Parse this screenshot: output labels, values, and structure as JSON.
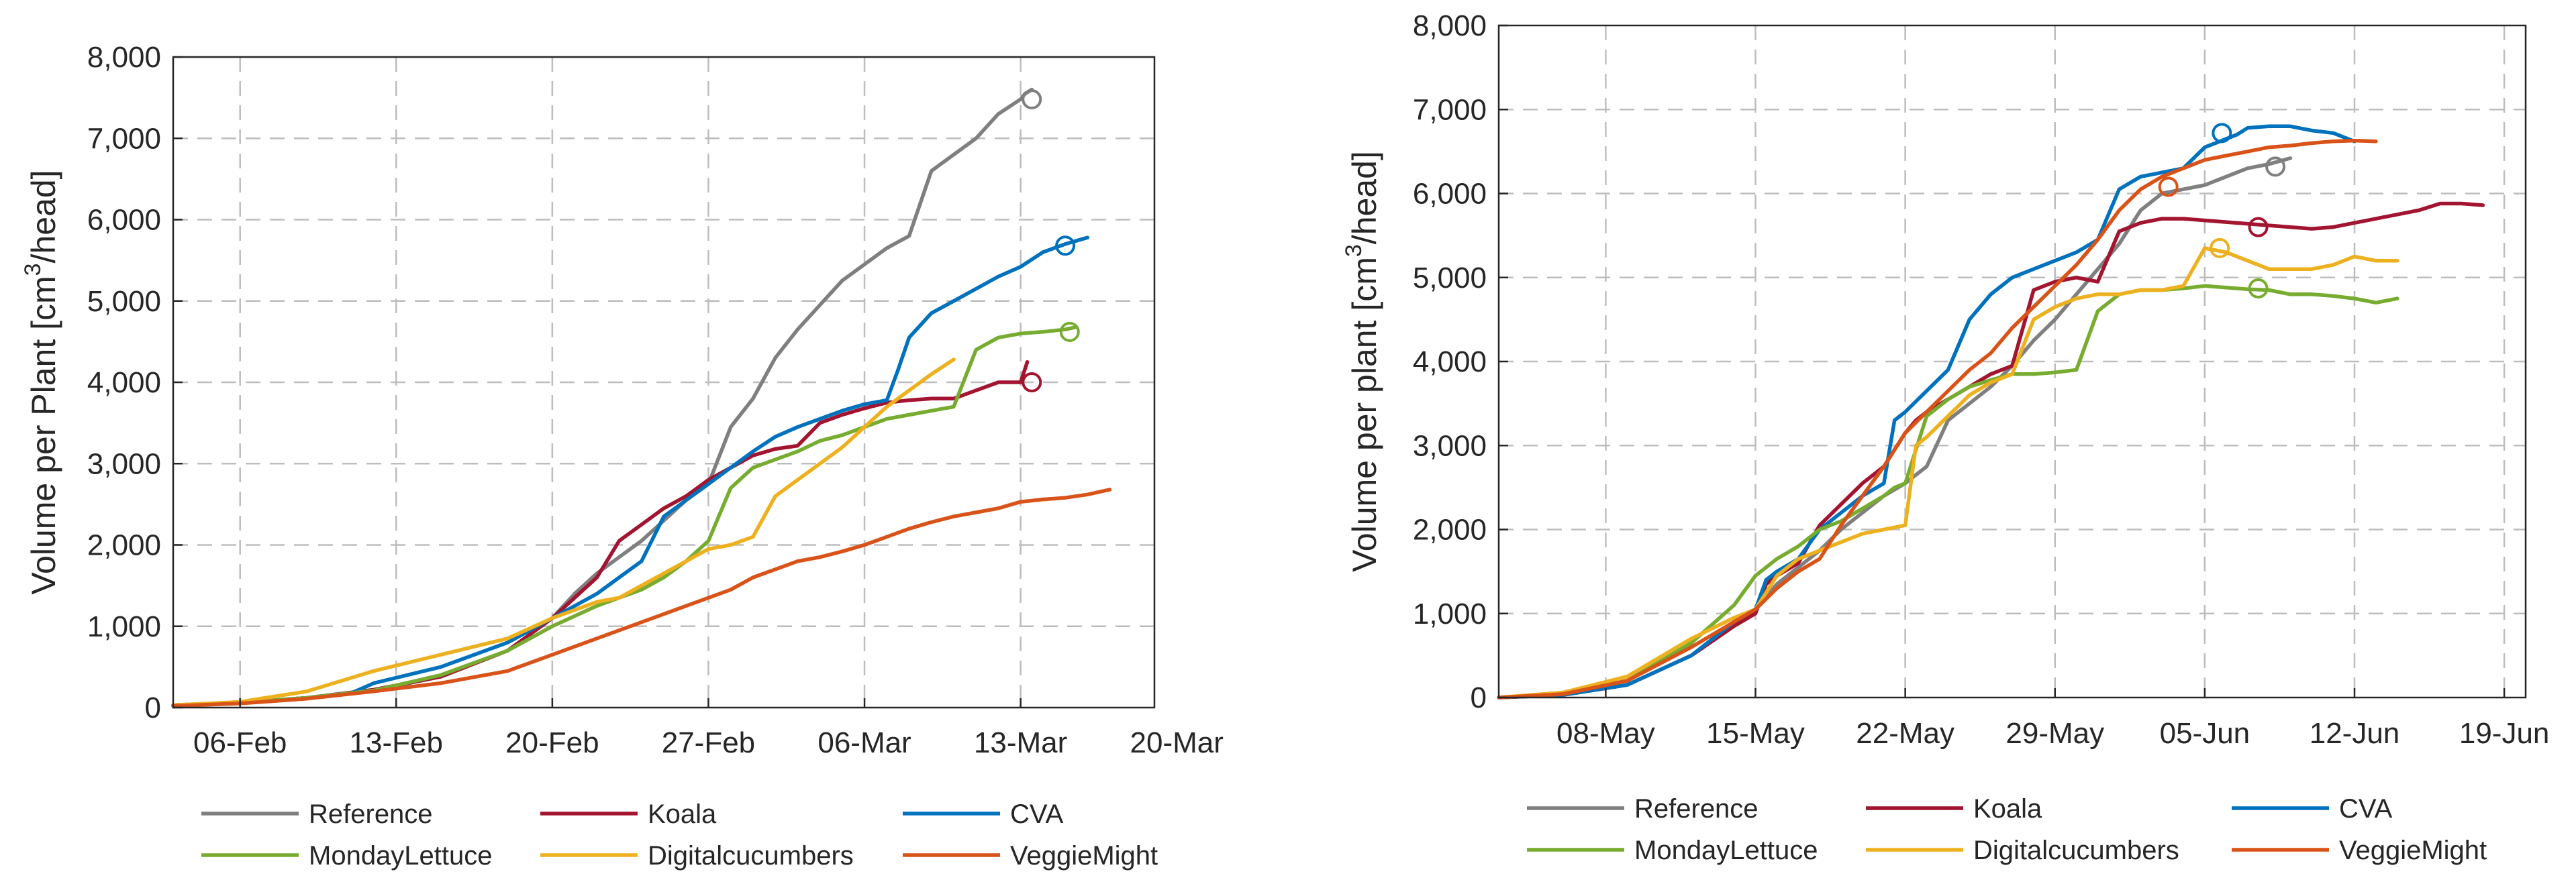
{
  "series_colors": {
    "Reference": "#7f7f7f",
    "Koala": "#a2142f",
    "CVA": "#0072bd",
    "MondayLettuce": "#77ac30",
    "Digitalcucumbers": "#edb120",
    "VeggieMight": "#d95319"
  },
  "chart_data": [
    {
      "type": "line",
      "ylabel": "Volume per Plant [cm",
      "ylabel_sup": "3",
      "ylabel_end": "/head]",
      "xlim": [
        0,
        44
      ],
      "ylim": [
        0,
        8000
      ],
      "xticks": [
        {
          "x": 3,
          "label": "06-Feb"
        },
        {
          "x": 10,
          "label": "13-Feb"
        },
        {
          "x": 17,
          "label": "20-Feb"
        },
        {
          "x": 24,
          "label": "27-Feb"
        },
        {
          "x": 31,
          "label": "06-Mar"
        },
        {
          "x": 38,
          "label": "13-Mar"
        },
        {
          "x": 45,
          "label": "20-Mar"
        }
      ],
      "yticks": [
        {
          "y": 0,
          "label": "0"
        },
        {
          "y": 1000,
          "label": "1,000"
        },
        {
          "y": 2000,
          "label": "2,000"
        },
        {
          "y": 3000,
          "label": "3,000"
        },
        {
          "y": 4000,
          "label": "4,000"
        },
        {
          "y": 5000,
          "label": "5,000"
        },
        {
          "y": 6000,
          "label": "6,000"
        },
        {
          "y": 7000,
          "label": "7,000"
        },
        {
          "y": 8000,
          "label": "8,000"
        }
      ],
      "grid": true,
      "legend_position": "bottom",
      "series": [
        {
          "name": "Reference",
          "x": [
            0,
            3,
            6,
            9,
            12,
            15,
            17,
            18,
            19,
            20,
            21,
            22,
            23,
            24,
            25,
            26,
            27,
            28,
            29,
            30,
            31,
            32,
            33,
            34,
            35,
            36,
            37,
            38,
            38.2,
            38.5
          ],
          "y": [
            30,
            60,
            120,
            210,
            380,
            700,
            1100,
            1400,
            1650,
            1850,
            2050,
            2300,
            2550,
            2750,
            3450,
            3800,
            4300,
            4650,
            4950,
            5250,
            5450,
            5650,
            5800,
            6600,
            6800,
            7000,
            7300,
            7480,
            7550,
            7600
          ],
          "marker": {
            "x": 38.5,
            "y": 7480
          }
        },
        {
          "name": "Koala",
          "x": [
            0,
            3,
            6,
            9,
            12,
            15,
            16,
            17,
            18,
            19,
            20,
            21,
            22,
            23,
            24,
            25,
            26,
            27,
            28,
            29,
            30,
            31,
            32,
            33,
            34,
            35,
            36,
            37,
            38,
            38.3
          ],
          "y": [
            30,
            60,
            120,
            220,
            380,
            700,
            900,
            1100,
            1350,
            1600,
            2050,
            2250,
            2450,
            2600,
            2800,
            2950,
            3100,
            3180,
            3220,
            3500,
            3600,
            3680,
            3750,
            3780,
            3800,
            3800,
            3900,
            4000,
            4000,
            4250
          ],
          "marker": {
            "x": 38.5,
            "y": 4000
          }
        },
        {
          "name": "CVA",
          "x": [
            0,
            3,
            6,
            8,
            9,
            12,
            15,
            17,
            19,
            20,
            21,
            22,
            23,
            24,
            25,
            26,
            27,
            28,
            29,
            30,
            31,
            32,
            32.5,
            33,
            34,
            35,
            36,
            37,
            38,
            39,
            40,
            41
          ],
          "y": [
            30,
            60,
            120,
            180,
            300,
            500,
            800,
            1100,
            1400,
            1600,
            1800,
            2350,
            2550,
            2750,
            2950,
            3150,
            3330,
            3450,
            3550,
            3650,
            3730,
            3780,
            4150,
            4550,
            4850,
            5000,
            5150,
            5300,
            5420,
            5600,
            5700,
            5780
          ],
          "marker": {
            "x": 40,
            "y": 5680
          }
        },
        {
          "name": "MondayLettuce",
          "x": [
            0,
            3,
            6,
            9,
            12,
            15,
            17,
            19,
            20,
            21,
            22,
            23,
            24,
            25,
            26,
            27,
            28,
            29,
            30,
            31,
            32,
            33,
            34,
            35,
            36,
            37,
            38,
            39,
            40,
            40.5
          ],
          "y": [
            30,
            60,
            120,
            210,
            400,
            700,
            1000,
            1250,
            1350,
            1450,
            1600,
            1800,
            2050,
            2700,
            2950,
            3050,
            3150,
            3280,
            3350,
            3450,
            3550,
            3600,
            3650,
            3700,
            4400,
            4550,
            4600,
            4620,
            4650,
            4680
          ],
          "marker": {
            "x": 40.2,
            "y": 4620
          }
        },
        {
          "name": "Digitalcucumbers",
          "x": [
            0,
            3,
            6,
            9,
            12,
            15,
            17,
            19,
            20,
            21,
            22,
            23,
            24,
            25,
            26,
            27,
            28,
            29,
            30,
            31,
            32,
            33,
            34,
            35
          ],
          "y": [
            30,
            70,
            200,
            450,
            650,
            850,
            1100,
            1300,
            1350,
            1500,
            1650,
            1800,
            1950,
            2000,
            2100,
            2600,
            2800,
            3000,
            3200,
            3450,
            3700,
            3900,
            4100,
            4280
          ]
        },
        {
          "name": "VeggieMight",
          "x": [
            0,
            3,
            6,
            9,
            12,
            15,
            16,
            17,
            18,
            19,
            20,
            21,
            22,
            23,
            24,
            25,
            26,
            27,
            28,
            29,
            30,
            31,
            32,
            33,
            34,
            35,
            36,
            37,
            38,
            39,
            40,
            41,
            42
          ],
          "y": [
            20,
            50,
            110,
            200,
            300,
            450,
            550,
            650,
            750,
            850,
            950,
            1050,
            1150,
            1250,
            1350,
            1450,
            1600,
            1700,
            1800,
            1850,
            1920,
            2000,
            2100,
            2200,
            2280,
            2350,
            2400,
            2450,
            2530,
            2560,
            2580,
            2620,
            2680
          ]
        }
      ]
    },
    {
      "type": "line",
      "ylabel": "Volume per plant [cm",
      "ylabel_sup": "3",
      "ylabel_end": "/head]",
      "xlim": [
        0,
        48
      ],
      "ylim": [
        0,
        8000
      ],
      "xticks": [
        {
          "x": 5,
          "label": "08-May"
        },
        {
          "x": 12,
          "label": "15-May"
        },
        {
          "x": 19,
          "label": "22-May"
        },
        {
          "x": 26,
          "label": "29-May"
        },
        {
          "x": 33,
          "label": "05-Jun"
        },
        {
          "x": 40,
          "label": "12-Jun"
        },
        {
          "x": 47,
          "label": "19-Jun"
        }
      ],
      "yticks": [
        {
          "y": 0,
          "label": "0"
        },
        {
          "y": 1000,
          "label": "1,000"
        },
        {
          "y": 2000,
          "label": "2,000"
        },
        {
          "y": 3000,
          "label": "3,000"
        },
        {
          "y": 4000,
          "label": "4,000"
        },
        {
          "y": 5000,
          "label": "5,000"
        },
        {
          "y": 6000,
          "label": "6,000"
        },
        {
          "y": 7000,
          "label": "7,000"
        },
        {
          "y": 8000,
          "label": "8,000"
        }
      ],
      "grid": true,
      "legend_position": "bottom",
      "series": [
        {
          "name": "Reference",
          "x": [
            0,
            3,
            6,
            9,
            11,
            12,
            13,
            14,
            15,
            16,
            17,
            18,
            19,
            20,
            21,
            22,
            23,
            24,
            25,
            26,
            27,
            28,
            29,
            30,
            31,
            32,
            33,
            34,
            35,
            36,
            37
          ],
          "y": [
            0,
            30,
            150,
            500,
            850,
            1050,
            1350,
            1550,
            1750,
            2000,
            2200,
            2400,
            2550,
            2750,
            3300,
            3500,
            3700,
            3950,
            4250,
            4500,
            4800,
            5100,
            5400,
            5800,
            6000,
            6050,
            6100,
            6200,
            6300,
            6350,
            6420
          ],
          "marker": {
            "x": 36.3,
            "y": 6320
          }
        },
        {
          "name": "Koala",
          "x": [
            0,
            3,
            6,
            9,
            11,
            12,
            12.5,
            13,
            14,
            15,
            16,
            17,
            18,
            19,
            19.5,
            20,
            21,
            22,
            23,
            24,
            25,
            26,
            27,
            28,
            29,
            30,
            31,
            32,
            33,
            34,
            35,
            36,
            37,
            38,
            39,
            40,
            41,
            42,
            43,
            44,
            45,
            46
          ],
          "y": [
            0,
            30,
            150,
            500,
            850,
            1000,
            1350,
            1450,
            1600,
            2050,
            2300,
            2550,
            2750,
            3150,
            3300,
            3400,
            3550,
            3700,
            3850,
            3950,
            4850,
            4950,
            5000,
            4950,
            5550,
            5650,
            5700,
            5700,
            5680,
            5660,
            5640,
            5620,
            5600,
            5580,
            5600,
            5650,
            5700,
            5750,
            5800,
            5880,
            5880,
            5860
          ],
          "marker": {
            "x": 35.5,
            "y": 5600
          }
        },
        {
          "name": "CVA",
          "x": [
            0,
            3,
            6,
            9,
            11,
            12,
            12.5,
            13,
            14,
            15,
            16,
            17,
            18,
            18.5,
            19,
            20,
            21,
            22,
            23,
            24,
            25,
            26,
            27,
            28,
            29,
            30,
            31,
            32,
            33,
            34,
            34.5,
            35,
            36,
            37,
            38,
            39,
            40
          ],
          "y": [
            0,
            30,
            150,
            500,
            900,
            1050,
            1400,
            1500,
            1650,
            2000,
            2200,
            2400,
            2550,
            3300,
            3400,
            3650,
            3900,
            4500,
            4800,
            5000,
            5100,
            5200,
            5300,
            5450,
            6050,
            6200,
            6250,
            6300,
            6550,
            6650,
            6700,
            6780,
            6800,
            6800,
            6750,
            6720,
            6620
          ],
          "marker": {
            "x": 33.8,
            "y": 6720
          }
        },
        {
          "name": "MondayLettuce",
          "x": [
            0,
            3,
            6,
            9,
            11,
            12,
            13,
            14,
            15,
            16,
            17,
            18,
            18.5,
            19,
            20,
            21,
            22,
            23,
            24,
            25,
            26,
            27,
            28,
            29,
            30,
            31,
            32,
            33,
            34,
            35,
            36,
            37,
            38,
            39,
            40,
            41,
            42
          ],
          "y": [
            0,
            50,
            200,
            650,
            1100,
            1450,
            1650,
            1800,
            2000,
            2100,
            2250,
            2400,
            2500,
            2550,
            3350,
            3550,
            3700,
            3780,
            3850,
            3850,
            3870,
            3900,
            4600,
            4800,
            4850,
            4850,
            4870,
            4900,
            4880,
            4860,
            4850,
            4800,
            4800,
            4780,
            4750,
            4700,
            4750
          ],
          "marker": {
            "x": 35.5,
            "y": 4870
          }
        },
        {
          "name": "Digitalcucumbers",
          "x": [
            0,
            3,
            6,
            9,
            11,
            12,
            13,
            14,
            15,
            16,
            17,
            18,
            19,
            19.5,
            20,
            21,
            22,
            23,
            24,
            25,
            26,
            27,
            28,
            29,
            30,
            31,
            32,
            33,
            34,
            35,
            36,
            37,
            38,
            39,
            40,
            41,
            42
          ],
          "y": [
            0,
            60,
            250,
            700,
            950,
            1050,
            1450,
            1650,
            1750,
            1850,
            1950,
            2000,
            2050,
            3000,
            3100,
            3350,
            3600,
            3750,
            3850,
            4500,
            4650,
            4750,
            4800,
            4800,
            4850,
            4850,
            4900,
            5350,
            5300,
            5200,
            5100,
            5100,
            5100,
            5150,
            5250,
            5200,
            5200
          ],
          "marker": {
            "x": 33.7,
            "y": 5350
          }
        },
        {
          "name": "VeggieMight",
          "x": [
            0,
            3,
            6,
            9,
            11,
            12,
            13,
            14,
            15,
            16,
            17,
            18,
            19,
            20,
            21,
            22,
            23,
            24,
            25,
            26,
            27,
            28,
            29,
            30,
            31,
            32,
            33,
            34,
            35,
            36,
            37,
            38,
            39,
            40,
            41
          ],
          "y": [
            0,
            40,
            200,
            600,
            900,
            1050,
            1300,
            1500,
            1650,
            2050,
            2400,
            2750,
            3150,
            3400,
            3650,
            3900,
            4100,
            4400,
            4650,
            4900,
            5150,
            5450,
            5800,
            6050,
            6200,
            6300,
            6400,
            6450,
            6500,
            6550,
            6570,
            6600,
            6620,
            6630,
            6620
          ],
          "marker": {
            "x": 31.3,
            "y": 6080
          }
        }
      ]
    }
  ]
}
